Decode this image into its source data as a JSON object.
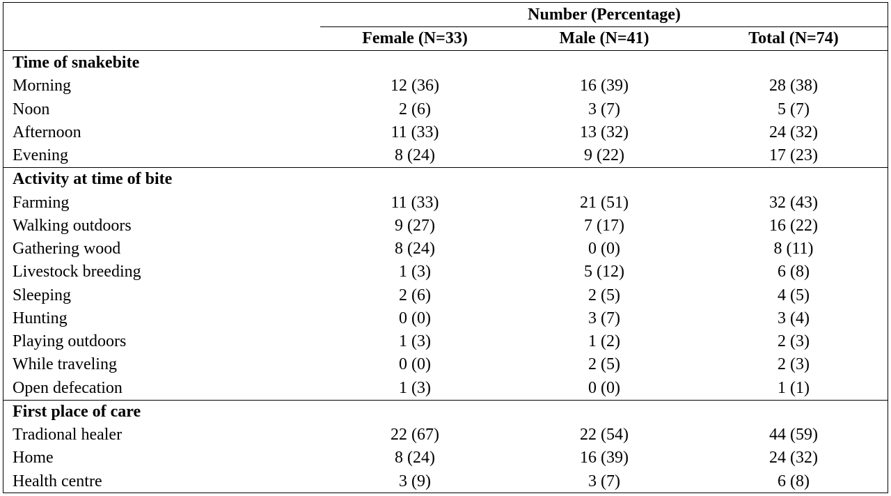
{
  "header": {
    "span_title": "Number (Percentage)",
    "columns": [
      "Female (N=33)",
      "Male (N=41)",
      "Total (N=74)"
    ]
  },
  "sections": [
    {
      "title": "Time of snakebite",
      "rows": [
        {
          "label": "Morning",
          "values": [
            "12 (36)",
            "16 (39)",
            "28 (38)"
          ]
        },
        {
          "label": "Noon",
          "values": [
            "2 (6)",
            "3 (7)",
            "5 (7)"
          ]
        },
        {
          "label": "Afternoon",
          "values": [
            "11 (33)",
            "13 (32)",
            "24 (32)"
          ]
        },
        {
          "label": "Evening",
          "values": [
            "8 (24)",
            "9 (22)",
            "17 (23)"
          ]
        }
      ]
    },
    {
      "title": "Activity at time of bite",
      "rows": [
        {
          "label": "Farming",
          "values": [
            "11 (33)",
            "21 (51)",
            "32 (43)"
          ]
        },
        {
          "label": "Walking outdoors",
          "values": [
            "9 (27)",
            "7 (17)",
            "16 (22)"
          ]
        },
        {
          "label": "Gathering wood",
          "values": [
            "8 (24)",
            "0 (0)",
            "8 (11)"
          ]
        },
        {
          "label": "Livestock breeding",
          "values": [
            "1 (3)",
            "5 (12)",
            "6 (8)"
          ]
        },
        {
          "label": "Sleeping",
          "values": [
            "2 (6)",
            "2 (5)",
            "4 (5)"
          ]
        },
        {
          "label": "Hunting",
          "values": [
            "0 (0)",
            "3 (7)",
            "3 (4)"
          ]
        },
        {
          "label": "Playing outdoors",
          "values": [
            "1 (3)",
            "1 (2)",
            "2 (3)"
          ]
        },
        {
          "label": "While traveling",
          "values": [
            "0 (0)",
            "2 (5)",
            "2 (3)"
          ]
        },
        {
          "label": "Open defecation",
          "values": [
            "1 (3)",
            "0 (0)",
            "1 (1)"
          ]
        }
      ]
    },
    {
      "title": "First place of care",
      "rows": [
        {
          "label": "Tradional healer",
          "values": [
            "22 (67)",
            "22 (54)",
            "44 (59)"
          ]
        },
        {
          "label": "Home",
          "values": [
            "8 (24)",
            "16 (39)",
            "24 (32)"
          ]
        },
        {
          "label": "Health centre",
          "values": [
            "3 (9)",
            "3 (7)",
            "6 (8)"
          ]
        }
      ]
    }
  ]
}
